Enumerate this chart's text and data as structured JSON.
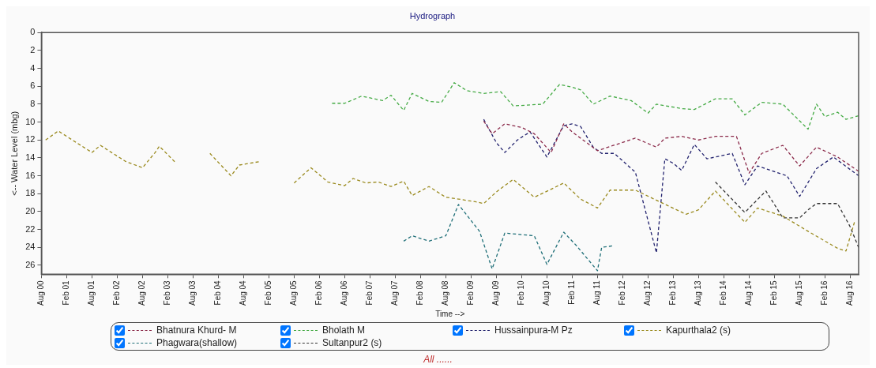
{
  "chart_data": {
    "type": "line",
    "title": "Hydrograph",
    "xlabel": "Time -->",
    "ylabel": "<-- Water Level (mbg)",
    "annotations": [
      "All ......"
    ],
    "xlim": [
      "2000-08",
      "2016-10"
    ],
    "ylim": [
      27,
      0
    ],
    "yticks": [
      0,
      2,
      4,
      6,
      8,
      10,
      12,
      14,
      16,
      18,
      20,
      22,
      24,
      26
    ],
    "xticks": [
      {
        "value": "2000-08",
        "label": "Aug 00"
      },
      {
        "value": "2001-02",
        "label": "Feb 01"
      },
      {
        "value": "2001-08",
        "label": "Aug 01"
      },
      {
        "value": "2002-02",
        "label": "Feb 02"
      },
      {
        "value": "2002-08",
        "label": "Aug 02"
      },
      {
        "value": "2003-02",
        "label": "Feb 03"
      },
      {
        "value": "2003-08",
        "label": "Aug 03"
      },
      {
        "value": "2004-02",
        "label": "Feb 04"
      },
      {
        "value": "2004-08",
        "label": "Aug 04"
      },
      {
        "value": "2005-02",
        "label": "Feb 05"
      },
      {
        "value": "2005-08",
        "label": "Aug 05"
      },
      {
        "value": "2006-02",
        "label": "Feb 06"
      },
      {
        "value": "2006-08",
        "label": "Aug 06"
      },
      {
        "value": "2007-02",
        "label": "Feb 07"
      },
      {
        "value": "2007-08",
        "label": "Aug 07"
      },
      {
        "value": "2008-02",
        "label": "Feb 08"
      },
      {
        "value": "2008-08",
        "label": "Aug 08"
      },
      {
        "value": "2009-02",
        "label": "Feb 09"
      },
      {
        "value": "2009-08",
        "label": "Aug 09"
      },
      {
        "value": "2010-02",
        "label": "Feb 10"
      },
      {
        "value": "2010-08",
        "label": "Aug 10"
      },
      {
        "value": "2011-02",
        "label": "Feb 11"
      },
      {
        "value": "2011-08",
        "label": "Aug 11"
      },
      {
        "value": "2012-02",
        "label": "Feb 12"
      },
      {
        "value": "2012-08",
        "label": "Aug 12"
      },
      {
        "value": "2013-02",
        "label": "Feb 13"
      },
      {
        "value": "2013-08",
        "label": "Aug 13"
      },
      {
        "value": "2014-02",
        "label": "Feb 14"
      },
      {
        "value": "2014-08",
        "label": "Aug 14"
      },
      {
        "value": "2015-02",
        "label": "Feb 15"
      },
      {
        "value": "2015-08",
        "label": "Aug 15"
      },
      {
        "value": "2016-02",
        "label": "Feb 16"
      },
      {
        "value": "2016-08",
        "label": "Aug 16"
      }
    ],
    "grid": false,
    "legend": "bottom",
    "marker": "none",
    "line_style": "dashed",
    "series": [
      {
        "name": "Bhatnura Khurd- M",
        "color": "#8b2a4a",
        "x": [
          "2009-05",
          "2009-07",
          "2009-10",
          "2010-02",
          "2010-05",
          "2010-09",
          "2010-12",
          "2011-02",
          "2011-08",
          "2012-05",
          "2012-10",
          "2012-12",
          "2013-04",
          "2013-08",
          "2013-12",
          "2014-05",
          "2014-08",
          "2014-11",
          "2015-04",
          "2015-08",
          "2015-12",
          "2016-05",
          "2016-10"
        ],
        "values": [
          9.9,
          11.3,
          10.2,
          10.6,
          11.3,
          13.4,
          10.2,
          11.1,
          13.2,
          11.8,
          12.8,
          11.8,
          11.6,
          12.0,
          11.6,
          11.6,
          15.7,
          13.5,
          12.6,
          14.9,
          12.8,
          13.9,
          15.5
        ]
      },
      {
        "name": "Bholath M",
        "color": "#44aa44",
        "x": [
          "2006-05",
          "2006-08",
          "2006-12",
          "2007-05",
          "2007-07",
          "2007-10",
          "2007-12",
          "2008-04",
          "2008-07",
          "2008-10",
          "2009-01",
          "2009-05",
          "2009-09",
          "2009-12",
          "2010-07",
          "2010-11",
          "2011-02",
          "2011-04",
          "2011-07",
          "2011-11",
          "2012-04",
          "2012-08",
          "2012-10",
          "2013-04",
          "2013-07",
          "2013-12",
          "2014-04",
          "2014-07",
          "2014-11",
          "2015-04",
          "2015-10",
          "2015-12",
          "2016-02",
          "2016-05",
          "2016-07",
          "2016-10"
        ],
        "values": [
          7.9,
          7.9,
          7.1,
          7.6,
          7.0,
          8.7,
          6.8,
          7.7,
          7.8,
          5.6,
          6.5,
          6.8,
          6.6,
          8.2,
          8.0,
          5.8,
          6.1,
          6.4,
          8.0,
          7.1,
          7.6,
          9.0,
          8.0,
          8.5,
          8.6,
          7.4,
          7.4,
          9.2,
          7.8,
          8.0,
          10.8,
          8.0,
          9.4,
          8.9,
          9.7,
          9.3
        ]
      },
      {
        "name": "Hussainpura-M Pz",
        "color": "#22226e",
        "x": [
          "2009-05",
          "2009-08",
          "2009-10",
          "2010-01",
          "2010-04",
          "2010-08",
          "2010-12",
          "2011-02",
          "2011-04",
          "2011-07",
          "2011-09",
          "2011-12",
          "2012-05",
          "2012-10",
          "2012-12",
          "2013-02",
          "2013-04",
          "2013-07",
          "2013-10",
          "2014-04",
          "2014-07",
          "2014-10",
          "2015-05",
          "2015-08",
          "2015-12",
          "2016-04",
          "2016-10"
        ],
        "values": [
          9.7,
          12.3,
          13.4,
          12.0,
          11.1,
          13.9,
          10.4,
          10.2,
          10.5,
          12.8,
          13.5,
          13.5,
          15.6,
          24.6,
          14.1,
          14.6,
          15.4,
          12.5,
          14.1,
          13.5,
          17.0,
          14.9,
          16.0,
          18.3,
          15.2,
          13.9,
          16.0
        ]
      },
      {
        "name": "Kapurthala2 (s)",
        "color": "#9a8a1e",
        "x": [
          "2000-09",
          "2000-12",
          "2001-08",
          "2001-10",
          "2002-04",
          "2002-08",
          "2002-11",
          "2002-12",
          "2003-04",
          "2003-08",
          "2003-12",
          "2004-05",
          "2004-07",
          "2004-12",
          "2005-04",
          "2005-08",
          "2005-12",
          "2006-04",
          "2006-08",
          "2006-10",
          "2007-01",
          "2007-04",
          "2007-07",
          "2007-10",
          "2007-12",
          "2008-04",
          "2008-08",
          "2008-11",
          "2009-03",
          "2009-05",
          "2009-08",
          "2009-12",
          "2010-05",
          "2010-09",
          "2010-12",
          "2011-04",
          "2011-08",
          "2011-11",
          "2012-05",
          "2013-05",
          "2013-08",
          "2013-12",
          "2014-07",
          "2014-10",
          "2015-04",
          "2015-10",
          "2016-05",
          "2016-07",
          "2016-09"
        ],
        "values": [
          12.0,
          11.0,
          13.4,
          12.6,
          14.4,
          15.1,
          13.4,
          12.7,
          14.6,
          null,
          13.5,
          16.0,
          14.8,
          14.4,
          null,
          16.8,
          15.1,
          16.7,
          17.1,
          16.3,
          16.8,
          16.7,
          17.2,
          16.6,
          18.2,
          17.2,
          18.4,
          18.6,
          18.9,
          19.1,
          17.8,
          16.4,
          18.4,
          17.5,
          16.8,
          18.6,
          19.6,
          17.6,
          17.6,
          20.3,
          19.8,
          17.7,
          21.2,
          19.6,
          20.5,
          22.2,
          24.1,
          24.4,
          21.2
        ]
      },
      {
        "name": "Phagwara(shallow)",
        "color": "#1f6f78",
        "x": [
          "2007-10",
          "2007-12",
          "2008-04",
          "2008-08",
          "2008-11",
          "2009-04",
          "2009-07",
          "2009-10",
          "2010-05",
          "2010-08",
          "2010-12",
          "2011-03",
          "2011-08",
          "2011-09",
          "2011-12"
        ],
        "values": [
          23.3,
          22.7,
          23.3,
          22.7,
          19.2,
          22.2,
          26.4,
          22.4,
          22.7,
          25.9,
          22.3,
          23.8,
          26.6,
          24.0,
          23.8
        ]
      },
      {
        "name": "Sultanpur2 (s)",
        "color": "#333333",
        "x": [
          "2013-12",
          "2014-07",
          "2014-12",
          "2015-04",
          "2015-08",
          "2015-10",
          "2015-12",
          "2016-05",
          "2016-08",
          "2016-10"
        ],
        "values": [
          16.7,
          20.1,
          17.7,
          20.7,
          20.7,
          19.8,
          19.1,
          19.1,
          21.7,
          24.0
        ]
      }
    ]
  }
}
